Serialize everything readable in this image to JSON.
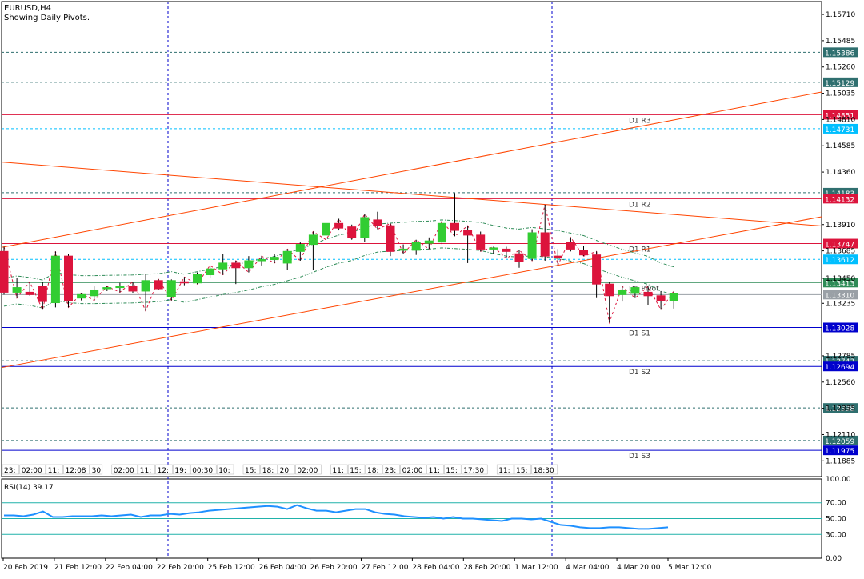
{
  "header": {
    "symbol": "EURUSD,H4",
    "subtitle": "Showing Daily Pivots."
  },
  "colors": {
    "up": "#32cd32",
    "down": "#dc143c",
    "frame": "#000000",
    "resistance": "#dc143c",
    "support": "#0000cd",
    "pivot": "#2e8b57",
    "trend": "#ff4500",
    "band": "#2e8b57",
    "rsi": "#1e90ff",
    "cyan": "#20b2aa"
  },
  "chart_data": [
    {
      "type": "candlestick",
      "title": "EURUSD,H4",
      "ylim": [
        1.1175,
        1.1582
      ],
      "y_ticks": [
        "1.15710",
        "1.15485",
        "1.15260",
        "1.15035",
        "1.14810",
        "1.14585",
        "1.14360",
        "1.13910",
        "1.13685",
        "1.13450",
        "1.13235",
        "1.12785",
        "1.12560",
        "1.12335",
        "1.12110",
        "1.11885"
      ],
      "x_ticks": [
        "20 Feb 2019",
        "21 Feb 12:00",
        "22 Feb 04:00",
        "22 Feb 20:00",
        "25 Feb 12:00",
        "26 Feb 04:00",
        "26 Feb 20:00",
        "27 Feb 12:00",
        "28 Feb 04:00",
        "28 Feb 20:00",
        "1 Mar 12:00",
        "4 Mar 04:00",
        "4 Mar 20:00",
        "5 Mar 12:00"
      ],
      "candles": [
        {
          "o": 1.1368,
          "h": 1.1372,
          "l": 1.1331,
          "c": 1.1333
        },
        {
          "o": 1.1333,
          "h": 1.1345,
          "l": 1.1328,
          "c": 1.1337
        },
        {
          "o": 1.1333,
          "h": 1.1342,
          "l": 1.133,
          "c": 1.1331
        },
        {
          "o": 1.1338,
          "h": 1.1342,
          "l": 1.1318,
          "c": 1.1325
        },
        {
          "o": 1.1324,
          "h": 1.1368,
          "l": 1.132,
          "c": 1.1364
        },
        {
          "o": 1.1364,
          "h": 1.1366,
          "l": 1.132,
          "c": 1.1326
        },
        {
          "o": 1.1328,
          "h": 1.1332,
          "l": 1.1326,
          "c": 1.1331
        },
        {
          "o": 1.133,
          "h": 1.1338,
          "l": 1.1326,
          "c": 1.1335
        },
        {
          "o": 1.1336,
          "h": 1.1338,
          "l": 1.1334,
          "c": 1.1337
        },
        {
          "o": 1.1337,
          "h": 1.1341,
          "l": 1.1333,
          "c": 1.1338
        },
        {
          "o": 1.1338,
          "h": 1.1342,
          "l": 1.1332,
          "c": 1.1334
        },
        {
          "o": 1.1334,
          "h": 1.1349,
          "l": 1.1317,
          "c": 1.1343
        },
        {
          "o": 1.1343,
          "h": 1.1344,
          "l": 1.1335,
          "c": 1.1336
        },
        {
          "o": 1.1329,
          "h": 1.1344,
          "l": 1.1326,
          "c": 1.1343
        },
        {
          "o": 1.1342,
          "h": 1.1346,
          "l": 1.1339,
          "c": 1.1341
        },
        {
          "o": 1.1341,
          "h": 1.135,
          "l": 1.134,
          "c": 1.1348
        },
        {
          "o": 1.1348,
          "h": 1.1356,
          "l": 1.1345,
          "c": 1.1353
        },
        {
          "o": 1.1353,
          "h": 1.1366,
          "l": 1.1348,
          "c": 1.1358
        },
        {
          "o": 1.1358,
          "h": 1.136,
          "l": 1.134,
          "c": 1.1354
        },
        {
          "o": 1.1354,
          "h": 1.1364,
          "l": 1.135,
          "c": 1.136
        },
        {
          "o": 1.136,
          "h": 1.1364,
          "l": 1.1356,
          "c": 1.1361
        },
        {
          "o": 1.1361,
          "h": 1.1366,
          "l": 1.1358,
          "c": 1.1363
        },
        {
          "o": 1.1358,
          "h": 1.137,
          "l": 1.1352,
          "c": 1.1368
        },
        {
          "o": 1.1368,
          "h": 1.1376,
          "l": 1.136,
          "c": 1.1374
        },
        {
          "o": 1.1374,
          "h": 1.1385,
          "l": 1.1352,
          "c": 1.1382
        },
        {
          "o": 1.1382,
          "h": 1.14,
          "l": 1.1378,
          "c": 1.1392
        },
        {
          "o": 1.1392,
          "h": 1.1396,
          "l": 1.1386,
          "c": 1.1388
        },
        {
          "o": 1.1389,
          "h": 1.1391,
          "l": 1.1378,
          "c": 1.138
        },
        {
          "o": 1.138,
          "h": 1.14,
          "l": 1.1376,
          "c": 1.1397
        },
        {
          "o": 1.1395,
          "h": 1.1402,
          "l": 1.1387,
          "c": 1.139
        },
        {
          "o": 1.139,
          "h": 1.1392,
          "l": 1.1364,
          "c": 1.1368
        },
        {
          "o": 1.1369,
          "h": 1.1374,
          "l": 1.1366,
          "c": 1.137
        },
        {
          "o": 1.1369,
          "h": 1.1378,
          "l": 1.1365,
          "c": 1.1376
        },
        {
          "o": 1.1375,
          "h": 1.138,
          "l": 1.137,
          "c": 1.1377
        },
        {
          "o": 1.1376,
          "h": 1.1394,
          "l": 1.1374,
          "c": 1.1392
        },
        {
          "o": 1.1392,
          "h": 1.1418,
          "l": 1.1381,
          "c": 1.1386
        },
        {
          "o": 1.1386,
          "h": 1.139,
          "l": 1.1358,
          "c": 1.1382
        },
        {
          "o": 1.1382,
          "h": 1.1385,
          "l": 1.1368,
          "c": 1.137
        },
        {
          "o": 1.137,
          "h": 1.1372,
          "l": 1.1366,
          "c": 1.1371
        },
        {
          "o": 1.137,
          "h": 1.1372,
          "l": 1.1362,
          "c": 1.1368
        },
        {
          "o": 1.1366,
          "h": 1.1369,
          "l": 1.1354,
          "c": 1.1359
        },
        {
          "o": 1.1362,
          "h": 1.1387,
          "l": 1.136,
          "c": 1.1384
        },
        {
          "o": 1.1384,
          "h": 1.1408,
          "l": 1.136,
          "c": 1.1364
        },
        {
          "o": 1.1364,
          "h": 1.137,
          "l": 1.1356,
          "c": 1.1363
        },
        {
          "o": 1.1376,
          "h": 1.138,
          "l": 1.1368,
          "c": 1.137
        },
        {
          "o": 1.1369,
          "h": 1.1373,
          "l": 1.1364,
          "c": 1.1365
        },
        {
          "o": 1.1365,
          "h": 1.1368,
          "l": 1.1328,
          "c": 1.134
        },
        {
          "o": 1.134,
          "h": 1.1342,
          "l": 1.1307,
          "c": 1.133
        },
        {
          "o": 1.1331,
          "h": 1.1338,
          "l": 1.1325,
          "c": 1.1335
        },
        {
          "o": 1.1332,
          "h": 1.1338,
          "l": 1.1328,
          "c": 1.1337
        },
        {
          "o": 1.1333,
          "h": 1.1338,
          "l": 1.1322,
          "c": 1.133
        },
        {
          "o": 1.133,
          "h": 1.1334,
          "l": 1.1318,
          "c": 1.1326
        },
        {
          "o": 1.1326,
          "h": 1.1334,
          "l": 1.1319,
          "c": 1.1332
        }
      ],
      "pivot_levels": [
        {
          "name": "D1 R3",
          "value": 1.14851,
          "label": "1.14851",
          "kind": "resistance"
        },
        {
          "name": "D1 R2",
          "value": 1.14132,
          "label": "1.14132",
          "kind": "resistance"
        },
        {
          "name": "D1 R1",
          "value": 1.13747,
          "label": "1.13747",
          "kind": "resistance"
        },
        {
          "name": "D1 Pivot",
          "value": 1.13413,
          "label": "1.13413",
          "kind": "pivot"
        },
        {
          "name": "D1 S1",
          "value": 1.13028,
          "label": "1.13028",
          "kind": "support"
        },
        {
          "name": "D1 S2",
          "value": 1.12694,
          "label": "1.12694",
          "kind": "support"
        },
        {
          "name": "D1 S3",
          "value": 1.11975,
          "label": "1.11975",
          "kind": "support"
        }
      ],
      "dashed_levels": [
        {
          "value": 1.15386,
          "label": "1.15386"
        },
        {
          "value": 1.15129,
          "label": "1.15129"
        },
        {
          "value": 1.14731,
          "label": "1.14731"
        },
        {
          "value": 1.14183,
          "label": "1.14183"
        },
        {
          "value": 1.13612,
          "label": "1.13612"
        },
        {
          "value": 1.12743,
          "label": "1.12743"
        },
        {
          "value": 1.12338,
          "label": "1.12338"
        },
        {
          "value": 1.12059,
          "label": "1.12059"
        }
      ],
      "current_price": {
        "value": 1.1331,
        "label": "1.13310"
      },
      "session_labels": [
        "23:",
        "02:00",
        "11:",
        "12:08",
        "30",
        "02:00",
        "11:",
        "12:",
        "19:",
        "00:30",
        "10:",
        "15:",
        "18:",
        "20:",
        "02:00",
        "11:",
        "15:",
        "18:",
        "23:",
        "02:00",
        "11:",
        "15:",
        "17:30",
        "11:",
        "15:",
        "18:30"
      ],
      "rsi": {
        "label": "RSI(14) 39.17",
        "levels": [
          70,
          50,
          30
        ],
        "ylim": [
          0,
          100
        ],
        "y_ticks": [
          "100.00",
          "70.00",
          "50.00",
          "30.00",
          "0.00"
        ],
        "values": [
          54,
          54,
          53,
          55,
          59,
          52,
          52,
          53,
          53,
          53,
          54,
          53,
          54,
          55,
          52,
          54,
          54,
          56,
          55,
          57,
          58,
          60,
          61,
          62,
          63,
          64,
          65,
          66,
          65,
          62,
          67,
          63,
          60,
          60,
          58,
          60,
          62,
          62,
          58,
          56,
          55,
          53,
          52,
          51,
          52,
          50,
          52,
          50,
          50,
          49,
          48,
          47,
          50,
          50,
          49,
          50,
          46,
          42,
          41,
          39,
          38,
          38,
          39,
          39,
          38,
          37,
          37,
          38,
          39
        ]
      }
    }
  ]
}
